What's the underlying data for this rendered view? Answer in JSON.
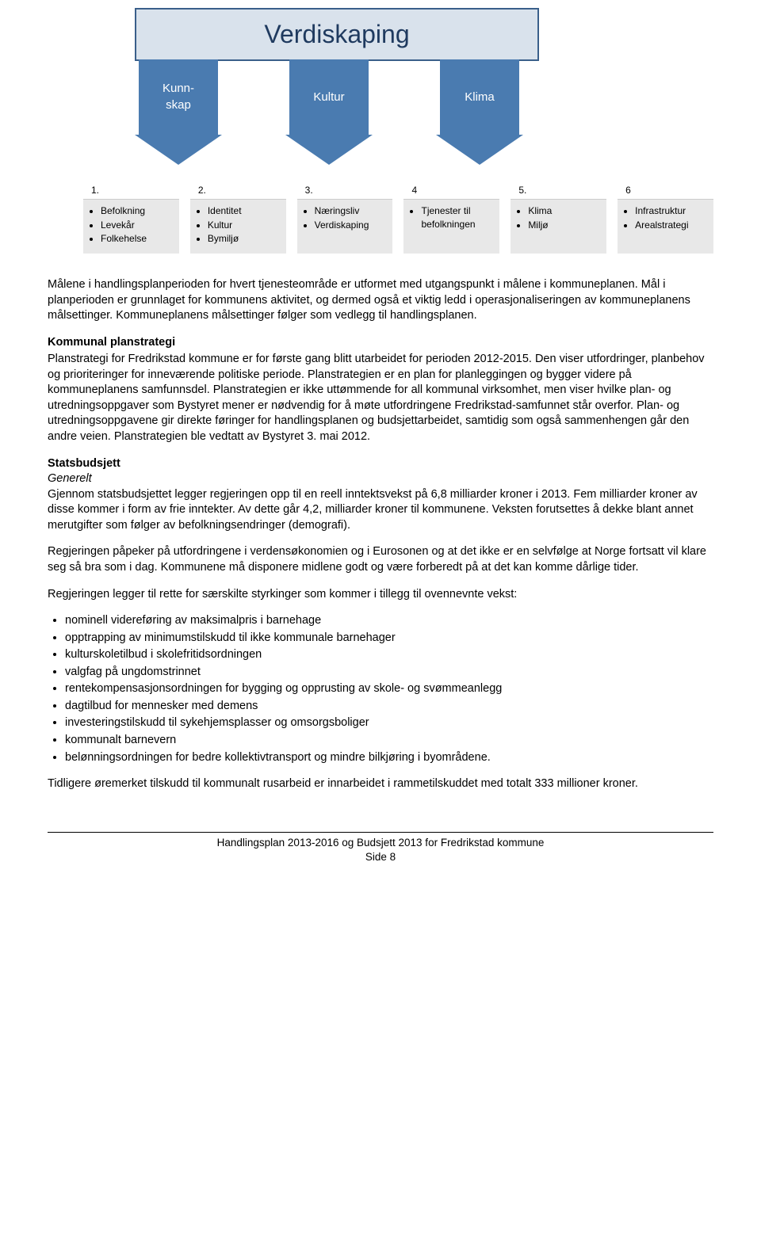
{
  "diagram": {
    "main_box": {
      "label": "Verdiskaping",
      "bg": "#d9e2ec",
      "border": "#3a5f8a",
      "text_color": "#1f3a5f",
      "fontsize": 32
    },
    "arrows": [
      {
        "label": "Kunn-\nskap",
        "bg": "#4a7bb0",
        "text_color": "#ffffff"
      },
      {
        "label": "Kultur",
        "bg": "#4a7bb0",
        "text_color": "#ffffff"
      },
      {
        "label": "Klima",
        "bg": "#4a7bb0",
        "text_color": "#ffffff"
      }
    ],
    "num_boxes": [
      {
        "num": "1.",
        "items": [
          "Befolkning",
          "Levekår",
          "Folkehelse"
        ]
      },
      {
        "num": "2.",
        "items": [
          "Identitet",
          "Kultur",
          "Bymiljø"
        ]
      },
      {
        "num": "3.",
        "items": [
          "Næringsliv",
          "Verdiskaping"
        ]
      },
      {
        "num": "4",
        "items": [
          "Tjenester til befolkningen"
        ]
      },
      {
        "num": "5.",
        "items": [
          "Klima",
          "Miljø"
        ]
      },
      {
        "num": "6",
        "items": [
          "Infrastruktur",
          "Arealstrategi"
        ]
      }
    ],
    "box_bg": "#e8e8e8",
    "box_hdr_bg": "#ffffff"
  },
  "content": {
    "p1": "Målene i handlingsplanperioden for hvert tjenesteområde er utformet med utgangspunkt i målene i kommuneplanen. Mål i planperioden er grunnlaget for kommunens aktivitet, og dermed også et viktig ledd i operasjonaliseringen av kommuneplanens målsettinger. Kommuneplanens målsettinger følger som vedlegg til handlingsplanen.",
    "h1": "Kommunal planstrategi",
    "p2": "Planstrategi for Fredrikstad kommune er for første gang blitt utarbeidet for perioden 2012-2015. Den viser utfordringer, planbehov og prioriteringer for inneværende politiske periode. Planstrategien er en plan for planleggingen og bygger videre på kommuneplanens samfunnsdel. Planstrategien er ikke uttømmende for all kommunal virksomhet, men viser hvilke plan- og utredningsoppgaver som Bystyret mener er nødvendig for å møte utfordringene Fredrikstad-samfunnet står overfor. Plan- og utredningsoppgavene gir direkte føringer for handlingsplanen og budsjettarbeidet, samtidig som også sammenhengen går den andre veien. Planstrategien ble vedtatt av Bystyret 3. mai 2012.",
    "h2": "Statsbudsjett",
    "h2_sub": "Generelt",
    "p3": "Gjennom statsbudsjettet legger regjeringen opp til en reell inntektsvekst på 6,8 milliarder kroner i 2013. Fem milliarder kroner av disse kommer i form av frie inntekter. Av dette går 4,2, milliarder kroner til kommunene. Veksten forutsettes å dekke blant annet merutgifter som følger av befolkningsendringer (demografi).",
    "p4": "Regjeringen påpeker på utfordringene i verdensøkonomien og i Eurosonen og at det ikke er en selvfølge at Norge fortsatt vil klare seg så bra som i dag. Kommunene må disponere midlene godt og være forberedt på at det kan komme dårlige tider.",
    "p5": "Regjeringen legger til rette for særskilte styrkinger som kommer i tillegg til ovennevnte vekst:",
    "bullets": [
      "nominell videreføring av maksimalpris i barnehage",
      "opptrapping av minimumstilskudd til ikke kommunale barnehager",
      "kulturskoletilbud i skolefritidsordningen",
      "valgfag på ungdomstrinnet",
      "rentekompensasjonsordningen for bygging og opprusting av skole- og svømmeanlegg",
      "dagtilbud for mennesker med demens",
      "investeringstilskudd til sykehjemsplasser og omsorgsboliger",
      "kommunalt barnevern",
      "belønningsordningen for bedre kollektivtransport og mindre bilkjøring i byområdene."
    ],
    "p6": "Tidligere øremerket tilskudd til kommunalt rusarbeid er innarbeidet i rammetilskuddet med totalt 333 millioner kroner."
  },
  "footer": {
    "line1": "Handlingsplan 2013-2016 og Budsjett 2013 for Fredrikstad kommune",
    "line2": "Side 8"
  }
}
